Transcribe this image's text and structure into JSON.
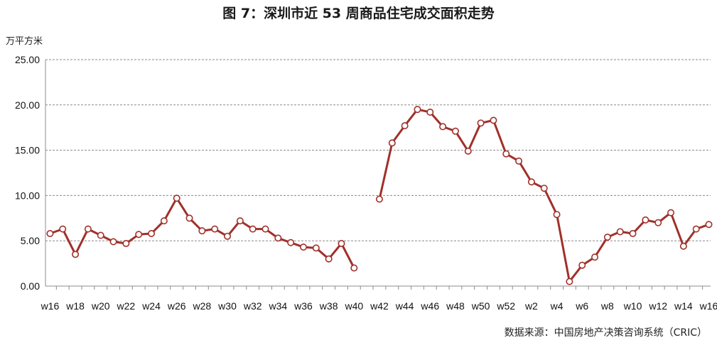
{
  "chart_data": {
    "type": "line",
    "title": "图 7：深圳市近 53 周商品住宅成交面积走势",
    "ylabel": "万平方米",
    "source": "数据来源：中国房地产决策咨询系统（CRIC）",
    "ylim": [
      0,
      25
    ],
    "yticks": [
      "25.00",
      "20.00",
      "15.00",
      "10.00",
      "5.00",
      "0.00"
    ],
    "grid": true,
    "line_color": "#A0302A",
    "x": [
      "w16",
      "w17",
      "w18",
      "w19",
      "w20",
      "w21",
      "w22",
      "w23",
      "w24",
      "w25",
      "w26",
      "w27",
      "w28",
      "w29",
      "w30",
      "w31",
      "w32",
      "w33",
      "w34",
      "w35",
      "w36",
      "w37",
      "w38",
      "w39",
      "w40",
      "w41",
      "w42",
      "w43",
      "w44",
      "w45",
      "w46",
      "w47",
      "w48",
      "w49",
      "w50",
      "w51",
      "w52",
      "w1",
      "w2",
      "w3",
      "w4",
      "w5",
      "w6",
      "w7",
      "w8",
      "w9",
      "w10",
      "w11",
      "w12",
      "w13",
      "w14",
      "w15",
      "w16"
    ],
    "xtick_labels": [
      "w16",
      "w18",
      "w20",
      "w22",
      "w24",
      "w26",
      "w28",
      "w30",
      "w32",
      "w34",
      "w36",
      "w38",
      "w40",
      "w42",
      "w44",
      "w46",
      "w48",
      "w50",
      "w52",
      "w2",
      "w4",
      "w6",
      "w8",
      "w10",
      "w12",
      "w14",
      "w16"
    ],
    "values": [
      5.8,
      6.3,
      3.5,
      6.3,
      5.6,
      4.9,
      4.7,
      5.7,
      5.8,
      7.2,
      9.7,
      7.5,
      6.1,
      6.3,
      5.5,
      7.2,
      6.3,
      6.3,
      5.3,
      4.8,
      4.3,
      4.2,
      3.0,
      4.7,
      2.0,
      null,
      9.6,
      15.8,
      17.7,
      19.5,
      19.2,
      17.6,
      17.1,
      14.9,
      18.0,
      18.3,
      14.6,
      13.8,
      11.5,
      10.8,
      7.9,
      0.5,
      2.3,
      3.2,
      5.4,
      6.0,
      5.8,
      7.3,
      7.0,
      8.1,
      4.4,
      6.3,
      6.8
    ]
  }
}
